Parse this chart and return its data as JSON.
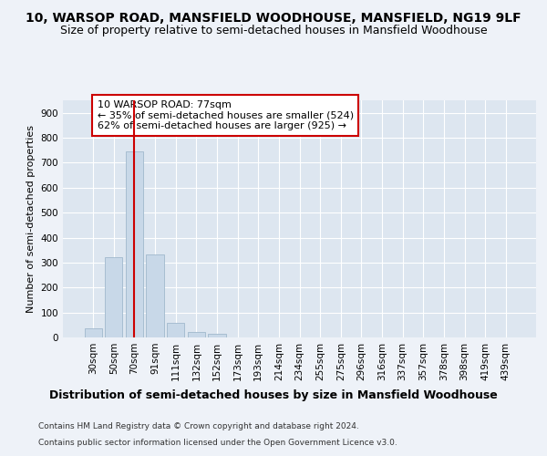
{
  "title_line1": "10, WARSOP ROAD, MANSFIELD WOODHOUSE, MANSFIELD, NG19 9LF",
  "title_line2": "Size of property relative to semi-detached houses in Mansfield Woodhouse",
  "xlabel": "Distribution of semi-detached houses by size in Mansfield Woodhouse",
  "ylabel": "Number of semi-detached properties",
  "footer_line1": "Contains HM Land Registry data © Crown copyright and database right 2024.",
  "footer_line2": "Contains public sector information licensed under the Open Government Licence v3.0.",
  "categories": [
    "30sqm",
    "50sqm",
    "70sqm",
    "91sqm",
    "111sqm",
    "132sqm",
    "152sqm",
    "173sqm",
    "193sqm",
    "214sqm",
    "234sqm",
    "255sqm",
    "275sqm",
    "296sqm",
    "316sqm",
    "337sqm",
    "357sqm",
    "378sqm",
    "398sqm",
    "419sqm",
    "439sqm"
  ],
  "values": [
    35,
    322,
    744,
    332,
    58,
    22,
    13,
    0,
    0,
    0,
    0,
    0,
    0,
    0,
    0,
    0,
    0,
    0,
    0,
    0,
    0
  ],
  "bar_color": "#c8d8e8",
  "bar_edge_color": "#a0b8cc",
  "vline_x_index": 2,
  "vline_color": "#cc0000",
  "annotation_text": "10 WARSOP ROAD: 77sqm\n← 35% of semi-detached houses are smaller (524)\n62% of semi-detached houses are larger (925) →",
  "annotation_box_color": "#ffffff",
  "annotation_box_edge": "#cc0000",
  "ylim": [
    0,
    950
  ],
  "yticks": [
    0,
    100,
    200,
    300,
    400,
    500,
    600,
    700,
    800,
    900
  ],
  "bg_color": "#eef2f8",
  "plot_bg_color": "#dde6f0",
  "grid_color": "#ffffff",
  "title_fontsize": 10,
  "subtitle_fontsize": 9,
  "ylabel_fontsize": 8,
  "xlabel_fontsize": 9,
  "tick_fontsize": 7.5,
  "annotation_fontsize": 8,
  "footer_fontsize": 6.5
}
